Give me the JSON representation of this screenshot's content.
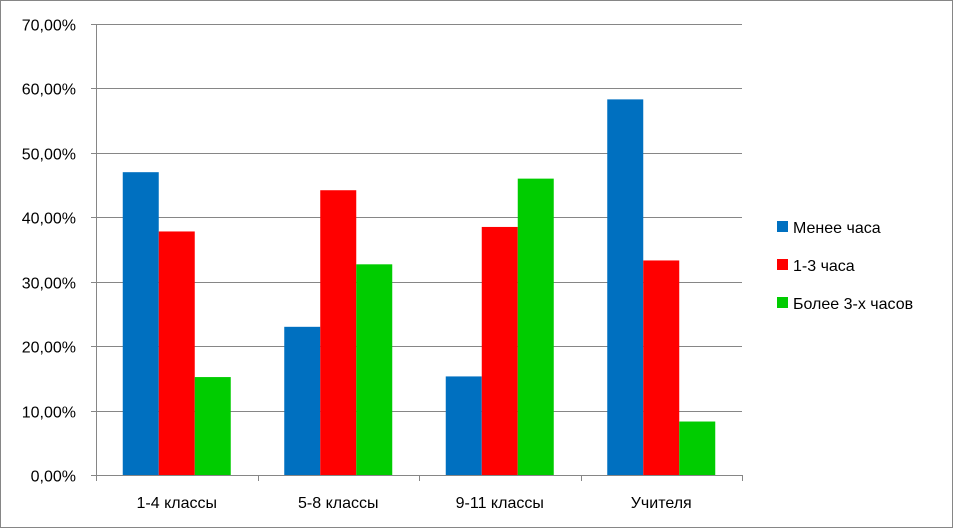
{
  "chart_data": {
    "type": "bar",
    "title": "",
    "xlabel": "",
    "ylabel": "",
    "categories": [
      "1-4 классы",
      "5-8 классы",
      "9-11 классы",
      "Учителя"
    ],
    "ylim": [
      0,
      0.7
    ],
    "y_tick_labels": [
      "0,00%",
      "10,00%",
      "20,00%",
      "30,00%",
      "40,00%",
      "50,00%",
      "60,00%",
      "70,00%"
    ],
    "grid": true,
    "legend_position": "right",
    "series": [
      {
        "name": "Менее часа",
        "color": "#0070C0",
        "values": [
          0.47,
          0.23,
          0.153,
          0.583
        ]
      },
      {
        "name": "1-3 часа",
        "color": "#FF0000",
        "values": [
          0.378,
          0.442,
          0.385,
          0.333
        ]
      },
      {
        "name": "Более 3-х часов",
        "color": "#00CC00",
        "values": [
          0.152,
          0.327,
          0.46,
          0.083
        ]
      }
    ]
  }
}
